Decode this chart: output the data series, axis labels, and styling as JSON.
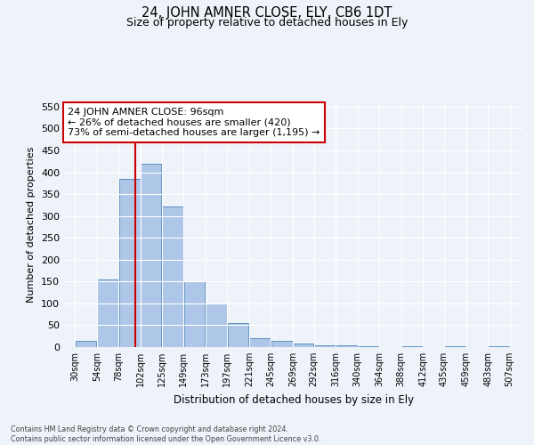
{
  "title": "24, JOHN AMNER CLOSE, ELY, CB6 1DT",
  "subtitle": "Size of property relative to detached houses in Ely",
  "xlabel": "Distribution of detached houses by size in Ely",
  "ylabel": "Number of detached properties",
  "footnote1": "Contains HM Land Registry data © Crown copyright and database right 2024.",
  "footnote2": "Contains public sector information licensed under the Open Government Licence v3.0.",
  "annotation_line1": "24 JOHN AMNER CLOSE: 96sqm",
  "annotation_line2": "← 26% of detached houses are smaller (420)",
  "annotation_line3": "73% of semi-detached houses are larger (1,195) →",
  "bar_left_edges": [
    30,
    54,
    78,
    102,
    125,
    149,
    173,
    197,
    221,
    245,
    269,
    292,
    316,
    340,
    364,
    388,
    412,
    435,
    459,
    483
  ],
  "bar_widths": [
    24,
    24,
    24,
    23,
    24,
    24,
    24,
    24,
    24,
    24,
    23,
    24,
    24,
    24,
    24,
    24,
    23,
    24,
    24,
    24
  ],
  "bar_heights": [
    15,
    155,
    385,
    420,
    322,
    150,
    100,
    55,
    20,
    15,
    8,
    5,
    4,
    3,
    0,
    3,
    0,
    3,
    0,
    3
  ],
  "bar_color": "#aec6e8",
  "bar_edge_color": "#5a8fc2",
  "marker_x": 96,
  "marker_color": "#cc0000",
  "ylim": [
    0,
    560
  ],
  "yticks": [
    0,
    50,
    100,
    150,
    200,
    250,
    300,
    350,
    400,
    450,
    500,
    550
  ],
  "xtick_labels": [
    "30sqm",
    "54sqm",
    "78sqm",
    "102sqm",
    "125sqm",
    "149sqm",
    "173sqm",
    "197sqm",
    "221sqm",
    "245sqm",
    "269sqm",
    "292sqm",
    "316sqm",
    "340sqm",
    "364sqm",
    "388sqm",
    "412sqm",
    "435sqm",
    "459sqm",
    "483sqm",
    "507sqm"
  ],
  "xtick_positions": [
    30,
    54,
    78,
    102,
    125,
    149,
    173,
    197,
    221,
    245,
    269,
    292,
    316,
    340,
    364,
    388,
    412,
    435,
    459,
    483,
    507
  ],
  "bg_color": "#eef2f9",
  "grid_color": "#ffffff",
  "annotation_box_color": "#cc0000",
  "annotation_box_facecolor": "#ffffff",
  "xlim": [
    18,
    522
  ]
}
